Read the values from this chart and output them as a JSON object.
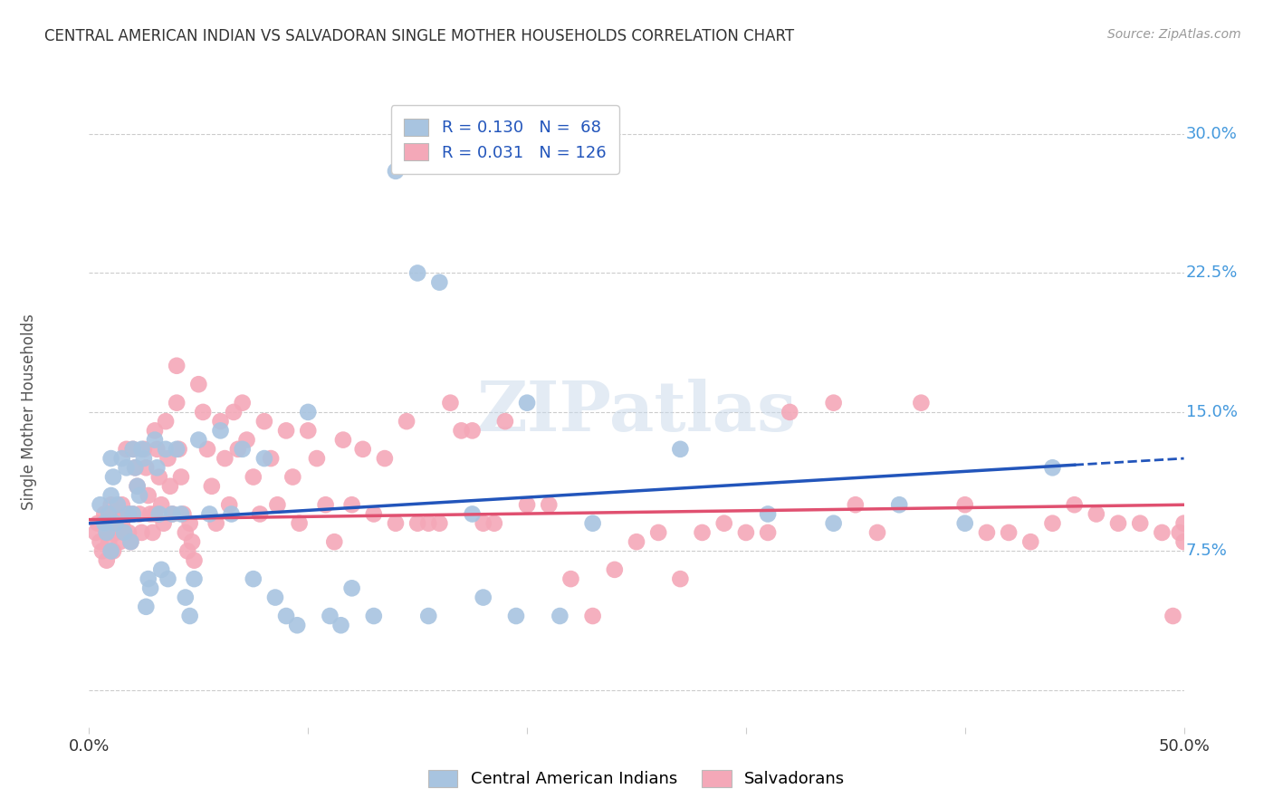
{
  "title": "CENTRAL AMERICAN INDIAN VS SALVADORAN SINGLE MOTHER HOUSEHOLDS CORRELATION CHART",
  "source": "Source: ZipAtlas.com",
  "ylabel": "Single Mother Households",
  "xlim": [
    0.0,
    0.5
  ],
  "ylim": [
    -0.02,
    0.32
  ],
  "blue_R": 0.13,
  "blue_N": 68,
  "pink_R": 0.031,
  "pink_N": 126,
  "blue_color": "#a8c4e0",
  "pink_color": "#f4a8b8",
  "blue_line_color": "#2255bb",
  "pink_line_color": "#e05070",
  "right_axis_color": "#4499dd",
  "legend_text_color": "#2255bb",
  "grid_color": "#cccccc",
  "watermark": "ZIPatlas",
  "blue_line_start_x": 0.0,
  "blue_line_end_solid_x": 0.45,
  "blue_line_end_dashed_x": 0.5,
  "blue_line_start_y": 0.09,
  "blue_line_end_y": 0.125,
  "pink_line_start_x": 0.0,
  "pink_line_end_x": 0.5,
  "pink_line_start_y": 0.092,
  "pink_line_end_y": 0.1,
  "blue_x": [
    0.005,
    0.007,
    0.008,
    0.009,
    0.01,
    0.01,
    0.01,
    0.011,
    0.012,
    0.013,
    0.015,
    0.016,
    0.017,
    0.018,
    0.019,
    0.02,
    0.02,
    0.021,
    0.022,
    0.023,
    0.024,
    0.025,
    0.026,
    0.027,
    0.028,
    0.03,
    0.031,
    0.032,
    0.033,
    0.035,
    0.036,
    0.038,
    0.04,
    0.042,
    0.044,
    0.046,
    0.048,
    0.05,
    0.055,
    0.06,
    0.065,
    0.07,
    0.075,
    0.08,
    0.085,
    0.09,
    0.095,
    0.1,
    0.11,
    0.115,
    0.12,
    0.13,
    0.14,
    0.15,
    0.155,
    0.16,
    0.175,
    0.18,
    0.195,
    0.2,
    0.215,
    0.23,
    0.27,
    0.31,
    0.34,
    0.37,
    0.4,
    0.44
  ],
  "blue_y": [
    0.1,
    0.09,
    0.085,
    0.095,
    0.125,
    0.105,
    0.075,
    0.115,
    0.09,
    0.1,
    0.125,
    0.085,
    0.12,
    0.095,
    0.08,
    0.13,
    0.095,
    0.12,
    0.11,
    0.105,
    0.13,
    0.125,
    0.045,
    0.06,
    0.055,
    0.135,
    0.12,
    0.095,
    0.065,
    0.13,
    0.06,
    0.095,
    0.13,
    0.095,
    0.05,
    0.04,
    0.06,
    0.135,
    0.095,
    0.14,
    0.095,
    0.13,
    0.06,
    0.125,
    0.05,
    0.04,
    0.035,
    0.15,
    0.04,
    0.035,
    0.055,
    0.04,
    0.28,
    0.225,
    0.04,
    0.22,
    0.095,
    0.05,
    0.04,
    0.155,
    0.04,
    0.09,
    0.13,
    0.095,
    0.09,
    0.1,
    0.09,
    0.12
  ],
  "pink_x": [
    0.003,
    0.004,
    0.005,
    0.006,
    0.007,
    0.008,
    0.008,
    0.009,
    0.009,
    0.01,
    0.01,
    0.01,
    0.011,
    0.011,
    0.012,
    0.013,
    0.014,
    0.015,
    0.015,
    0.016,
    0.017,
    0.018,
    0.018,
    0.019,
    0.02,
    0.02,
    0.021,
    0.022,
    0.023,
    0.024,
    0.025,
    0.026,
    0.027,
    0.028,
    0.029,
    0.03,
    0.03,
    0.031,
    0.032,
    0.033,
    0.034,
    0.035,
    0.036,
    0.037,
    0.038,
    0.04,
    0.04,
    0.041,
    0.042,
    0.043,
    0.044,
    0.045,
    0.046,
    0.047,
    0.048,
    0.05,
    0.052,
    0.054,
    0.056,
    0.058,
    0.06,
    0.062,
    0.064,
    0.066,
    0.068,
    0.07,
    0.072,
    0.075,
    0.078,
    0.08,
    0.083,
    0.086,
    0.09,
    0.093,
    0.096,
    0.1,
    0.104,
    0.108,
    0.112,
    0.116,
    0.12,
    0.125,
    0.13,
    0.135,
    0.14,
    0.145,
    0.15,
    0.155,
    0.16,
    0.165,
    0.17,
    0.175,
    0.18,
    0.185,
    0.19,
    0.2,
    0.21,
    0.22,
    0.23,
    0.24,
    0.25,
    0.26,
    0.27,
    0.28,
    0.29,
    0.3,
    0.31,
    0.32,
    0.34,
    0.35,
    0.36,
    0.38,
    0.4,
    0.41,
    0.42,
    0.43,
    0.44,
    0.45,
    0.46,
    0.47,
    0.48,
    0.49,
    0.495,
    0.498,
    0.5,
    0.5
  ],
  "pink_y": [
    0.085,
    0.09,
    0.08,
    0.075,
    0.095,
    0.085,
    0.07,
    0.095,
    0.08,
    0.1,
    0.09,
    0.085,
    0.095,
    0.075,
    0.085,
    0.095,
    0.08,
    0.1,
    0.09,
    0.085,
    0.13,
    0.095,
    0.085,
    0.08,
    0.13,
    0.095,
    0.12,
    0.11,
    0.095,
    0.085,
    0.13,
    0.12,
    0.105,
    0.095,
    0.085,
    0.14,
    0.095,
    0.13,
    0.115,
    0.1,
    0.09,
    0.145,
    0.125,
    0.11,
    0.095,
    0.175,
    0.155,
    0.13,
    0.115,
    0.095,
    0.085,
    0.075,
    0.09,
    0.08,
    0.07,
    0.165,
    0.15,
    0.13,
    0.11,
    0.09,
    0.145,
    0.125,
    0.1,
    0.15,
    0.13,
    0.155,
    0.135,
    0.115,
    0.095,
    0.145,
    0.125,
    0.1,
    0.14,
    0.115,
    0.09,
    0.14,
    0.125,
    0.1,
    0.08,
    0.135,
    0.1,
    0.13,
    0.095,
    0.125,
    0.09,
    0.145,
    0.09,
    0.09,
    0.09,
    0.155,
    0.14,
    0.14,
    0.09,
    0.09,
    0.145,
    0.1,
    0.1,
    0.06,
    0.04,
    0.065,
    0.08,
    0.085,
    0.06,
    0.085,
    0.09,
    0.085,
    0.085,
    0.15,
    0.155,
    0.1,
    0.085,
    0.155,
    0.1,
    0.085,
    0.085,
    0.08,
    0.09,
    0.1,
    0.095,
    0.09,
    0.09,
    0.085,
    0.04,
    0.085,
    0.09,
    0.08
  ]
}
